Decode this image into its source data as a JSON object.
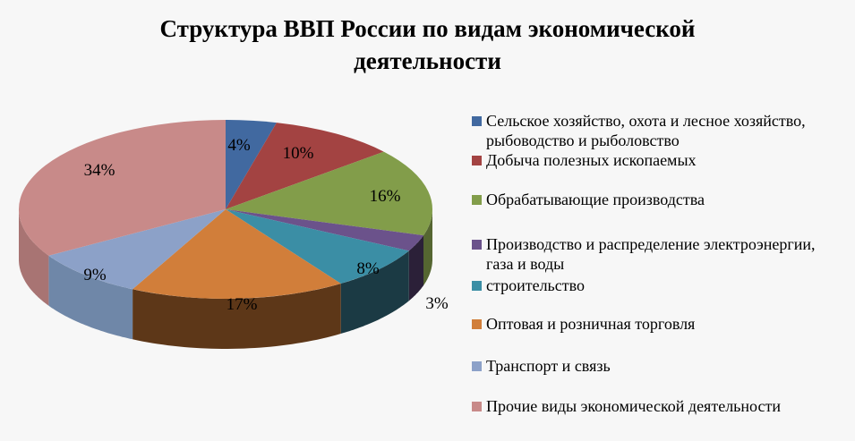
{
  "title": {
    "line1": "Структура ВВП России по видам экономической",
    "line2": "деятельности"
  },
  "chart_data": {
    "type": "pie",
    "variant": "3d-pie",
    "title": "Структура ВВП России по видам экономической деятельности",
    "unit": "%",
    "start_angle": "12 o'clock, clockwise",
    "legend_position": "right",
    "categories": [
      "Сельское хозяйство, охота и лесное хозяйство, рыбоводство и рыболовство",
      "Добыча полезных ископаемых",
      "Обрабатывающие производства",
      "Производство и распределение электроэнергии, газа и воды",
      "строительство",
      "Оптовая и розничная торговля",
      "Транспорт и связь",
      "Прочие виды экономической деятельности"
    ],
    "values": [
      4,
      10,
      16,
      3,
      8,
      17,
      9,
      34
    ],
    "labels": [
      "4%",
      "10%",
      "16%",
      "3%",
      "8%",
      "17%",
      "9%",
      "34%"
    ],
    "colors": [
      "#4169a0",
      "#a34342",
      "#829d4a",
      "#6b528b",
      "#3b8ea5",
      "#d17e3a",
      "#8ca1c8",
      "#c88a89"
    ],
    "side_colors": [
      "#2a4468",
      "#6a2b2b",
      "#556631",
      "#2b2038",
      "#1b3a44",
      "#5d3718",
      "#6f87a8",
      "#a87473"
    ]
  },
  "legend": {
    "items": [
      {
        "label": "Сельское хозяйство, охота и лесное хозяйство, рыбоводство и рыболовство",
        "color": "#4169a0"
      },
      {
        "label": "Добыча полезных ископаемых",
        "color": "#a34342"
      },
      {
        "label": "Обрабатывающие производства",
        "color": "#829d4a"
      },
      {
        "label": "Производство и распределение электроэнергии, газа и воды",
        "color": "#6b528b"
      },
      {
        "label": "строительство",
        "color": "#3b8ea5"
      },
      {
        "label": "Оптовая и розничная торговля",
        "color": "#d17e3a"
      },
      {
        "label": "Транспорт и связь",
        "color": "#8ca1c8"
      },
      {
        "label": "Прочие виды экономической деятельности",
        "color": "#c88a89"
      }
    ]
  }
}
